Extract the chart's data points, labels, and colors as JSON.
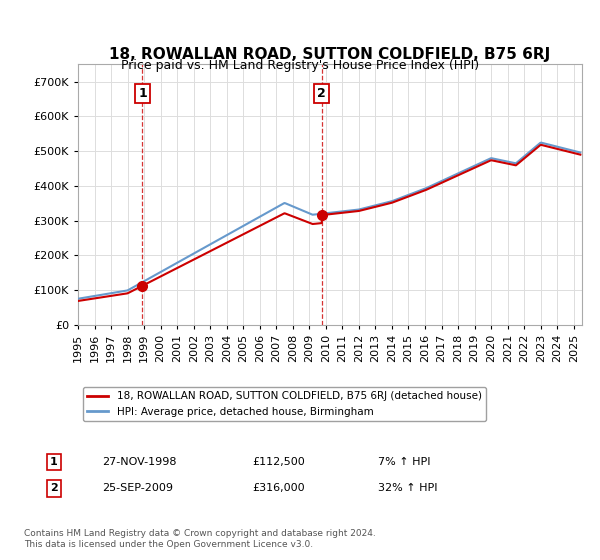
{
  "title": "18, ROWALLAN ROAD, SUTTON COLDFIELD, B75 6RJ",
  "subtitle": "Price paid vs. HM Land Registry's House Price Index (HPI)",
  "legend_label_red": "18, ROWALLAN ROAD, SUTTON COLDFIELD, B75 6RJ (detached house)",
  "legend_label_blue": "HPI: Average price, detached house, Birmingham",
  "transaction1_date": "27-NOV-1998",
  "transaction1_price": "£112,500",
  "transaction1_hpi": "7% ↑ HPI",
  "transaction2_date": "25-SEP-2009",
  "transaction2_price": "£316,000",
  "transaction2_hpi": "32% ↑ HPI",
  "footnote": "Contains HM Land Registry data © Crown copyright and database right 2024.\nThis data is licensed under the Open Government Licence v3.0.",
  "red_color": "#cc0000",
  "blue_color": "#6699cc",
  "vline1_x": 1998.9,
  "vline2_x": 2009.75,
  "ylim": [
    0,
    750000
  ],
  "xlim_start": 1995.0,
  "xlim_end": 2025.5,
  "sale1_price": 112500,
  "sale2_price": 316000
}
